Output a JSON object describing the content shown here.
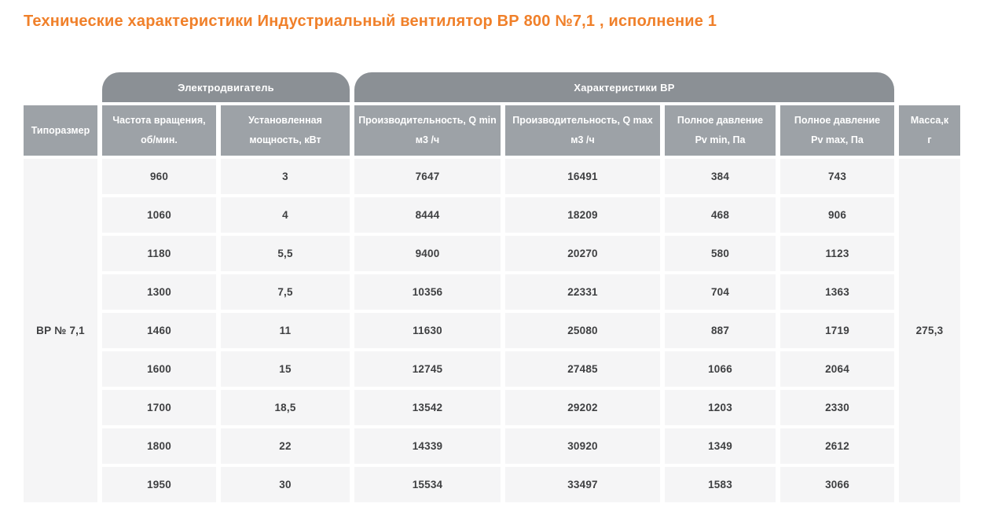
{
  "page": {
    "title": "Технические характеристики Индустриальный вентилятор ВР 800 №7,1 , исполнение 1"
  },
  "colors": {
    "accent_orange": "#f0802a",
    "group_header_bg": "#8b9095",
    "column_header_bg": "#9da2a7",
    "cell_bg": "#f5f5f6",
    "cell_text": "#3f4042",
    "header_text": "#ffffff",
    "page_bg": "#ffffff"
  },
  "table": {
    "groups": {
      "motor": "Электродвигатель",
      "fan": "Характеристики ВР"
    },
    "columns": [
      "Типоразмер",
      "Частота вращения,\nоб/мин.",
      "Установленная\nмощность, кВт",
      "Производительность, Q min\nм3 /ч",
      "Производительность, Q max\nм3 /ч",
      "Полное давление\nPv min, Па",
      "Полное давление\nPv max, Па",
      "Масса,к\nг"
    ],
    "size_value": "ВР № 7,1",
    "mass_value": "275,3",
    "rows": [
      {
        "values": [
          "960",
          "3",
          "7647",
          "16491",
          "384",
          "743"
        ]
      },
      {
        "values": [
          "1060",
          "4",
          "8444",
          "18209",
          "468",
          "906"
        ]
      },
      {
        "values": [
          "1180",
          "5,5",
          "9400",
          "20270",
          "580",
          "1123"
        ]
      },
      {
        "values": [
          "1300",
          "7,5",
          "10356",
          "22331",
          "704",
          "1363"
        ]
      },
      {
        "values": [
          "1460",
          "11",
          "11630",
          "25080",
          "887",
          "1719"
        ]
      },
      {
        "values": [
          "1600",
          "15",
          "12745",
          "27485",
          "1066",
          "2064"
        ]
      },
      {
        "values": [
          "1700",
          "18,5",
          "13542",
          "29202",
          "1203",
          "2330"
        ]
      },
      {
        "values": [
          "1800",
          "22",
          "14339",
          "30920",
          "1349",
          "2612"
        ]
      },
      {
        "values": [
          "1950",
          "30",
          "15534",
          "33497",
          "1583",
          "3066"
        ]
      }
    ]
  }
}
